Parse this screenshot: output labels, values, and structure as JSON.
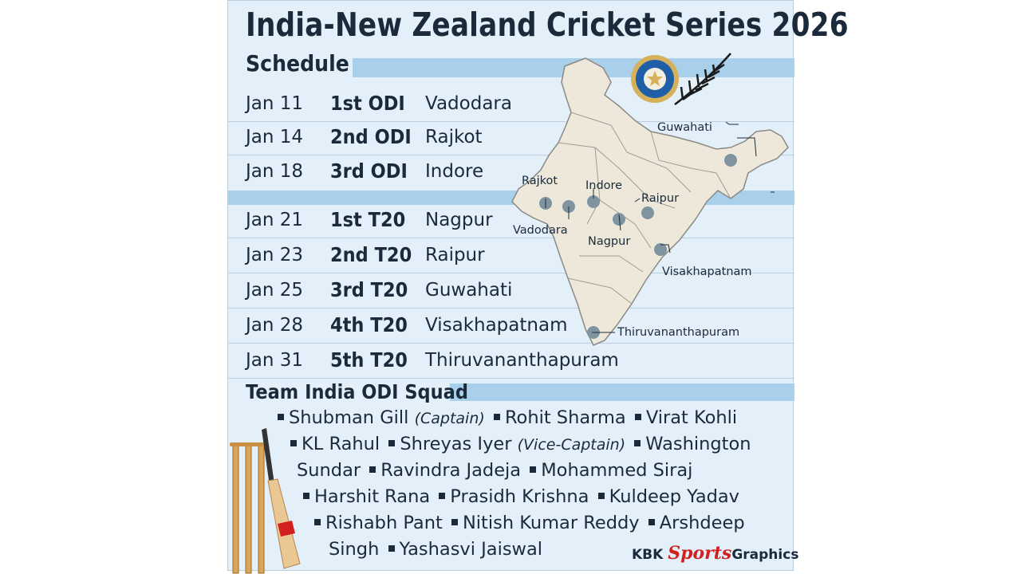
{
  "header": {
    "title": "India-New Zealand Cricket Series 2026",
    "subtitle": "Schedule"
  },
  "schedule": [
    {
      "date": "Jan 11",
      "match": "1st ODI",
      "venue": "Vadodara"
    },
    {
      "date": "Jan 14",
      "match": "2nd ODI",
      "venue": "Rajkot"
    },
    {
      "date": "Jan 18",
      "match": "3rd ODI",
      "venue": "Indore"
    },
    {
      "date": "Jan 21",
      "match": "1st T20",
      "venue": "Nagpur"
    },
    {
      "date": "Jan 23",
      "match": "2nd T20",
      "venue": "Raipur"
    },
    {
      "date": "Jan 25",
      "match": "3rd T20",
      "venue": "Guwahati"
    },
    {
      "date": "Jan 28",
      "match": "4th T20",
      "venue": "Visakhapatnam"
    },
    {
      "date": "Jan 31",
      "match": "5th T20",
      "venue": "Thiruvananthapuram"
    }
  ],
  "map": {
    "cities": {
      "guwahati": "Guwahati",
      "rajkot": "Rajkot",
      "indore": "Indore",
      "raipur": "Raipur",
      "vadodara": "Vadodara",
      "nagpur": "Nagpur",
      "visakhapatnam": "Visakhapatnam",
      "thiruvananthapuram": "Thiruvananthapuram"
    },
    "marker_color": "#7f949f"
  },
  "squad": {
    "title": "Team India ODI Squad",
    "p1": "Shubman Gill",
    "p1_role": "(Captain)",
    "p2": "Rohit Sharma",
    "p3": "Virat Kohli",
    "p4": "KL Rahul",
    "p5": "Shreyas Iyer",
    "p5_role": "(Vice-Captain)",
    "p6a": "Washington",
    "p6b": "Sundar",
    "p7": "Ravindra Jadeja",
    "p8": "Mohammed Siraj",
    "p9": "Harshit Rana",
    "p10": "Prasidh Krishna",
    "p11": "Kuldeep Yadav",
    "p12": "Rishabh Pant",
    "p13": "Nitish Kumar Reddy",
    "p14a": "Arshdeep",
    "p14b": "Singh",
    "p15": "Yashasvi Jaiswal"
  },
  "footer": {
    "brand_a": "KBK",
    "brand_b": "Sports",
    "brand_c": "Graphics"
  },
  "colors": {
    "background": "#e3f0f9",
    "band": "#a9d0ea",
    "text": "#1b2a3a",
    "map_fill": "#ede8da",
    "brand_red": "#d1201f"
  }
}
